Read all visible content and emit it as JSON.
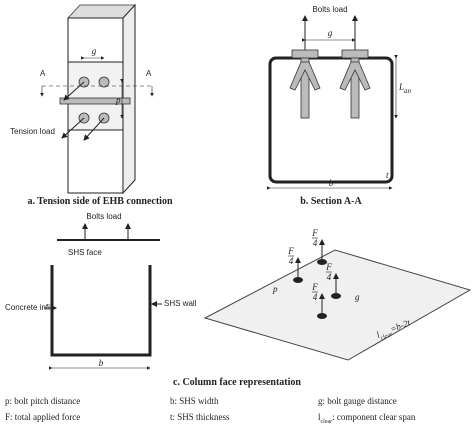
{
  "panel_a": {
    "gauge": "g",
    "section_left": "A",
    "section_right": "A",
    "pitch": "p",
    "tension_load": "Tension load",
    "caption": "a. Tension side of EHB connection"
  },
  "panel_b": {
    "bolts_load": "Bolts load",
    "gauge": "g",
    "anchor_length": {
      "main": "L",
      "sub": "an"
    },
    "width": "b",
    "thickness": "t",
    "caption": "b. Section A-A"
  },
  "panel_c": {
    "bolts_load": "Bolts load",
    "shs_face": "SHS face",
    "concrete_infill": "Concrete infill",
    "shs_wall": "SHS wall",
    "width": "b",
    "forces": [
      {
        "num": "F",
        "den": "4"
      },
      {
        "num": "F",
        "den": "4"
      },
      {
        "num": "F",
        "den": "4"
      },
      {
        "num": "F",
        "den": "4"
      }
    ],
    "pitch": "p",
    "gauge": "g",
    "clear_span": {
      "main": "l",
      "sub": "clear",
      "rest": "=b-2t"
    },
    "caption": "c. Column face representation"
  },
  "legend": [
    "p: bolt pitch distance",
    "b: SHS width",
    "g: bolt gauge distance",
    "F: total applied force",
    "t: SHS thickness",
    {
      "main": "l",
      "sub": "clear",
      "rest": ": component clear span"
    }
  ]
}
